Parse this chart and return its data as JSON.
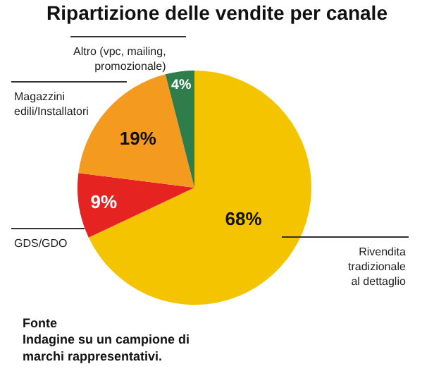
{
  "chart_data": {
    "type": "pie",
    "title": "Ripartizione delle vendite per canale",
    "categories": [
      "Rivendita tradizionale al dettaglio",
      "GDS/GDO",
      "Magazzini edili/Installatori",
      "Altro (vpc, mailing, promozionale)"
    ],
    "values": [
      68,
      9,
      19,
      4
    ],
    "value_labels": [
      "68%",
      "9%",
      "19%",
      "4%"
    ],
    "colors": [
      "#f5c400",
      "#e52421",
      "#f39a1f",
      "#2e7d4a"
    ],
    "legend": false,
    "annotations": [
      "Fonte",
      "Indagine su un campione di marchi rappresentativi."
    ]
  }
}
